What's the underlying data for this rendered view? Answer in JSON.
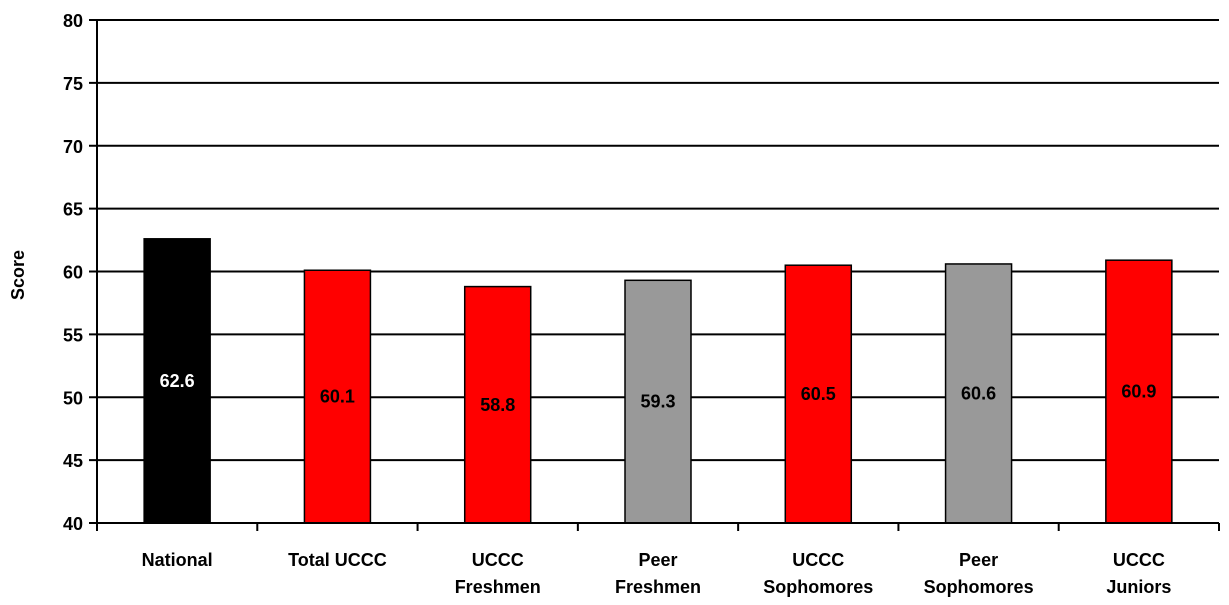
{
  "chart_data": {
    "type": "bar",
    "title": "",
    "xlabel": "",
    "ylabel": "Score",
    "ylim": [
      40,
      80
    ],
    "yticks": [
      "40",
      "45",
      "50",
      "55",
      "60",
      "65",
      "70",
      "75",
      "80"
    ],
    "grid": true,
    "legend": "none",
    "categories": [
      [
        "National"
      ],
      [
        "Total UCCC"
      ],
      [
        "UCCC",
        "Freshmen"
      ],
      [
        "Peer",
        "Freshmen"
      ],
      [
        "UCCC",
        "Sophomores"
      ],
      [
        "Peer",
        "Sophomores"
      ],
      [
        "UCCC",
        "Juniors"
      ]
    ],
    "values": [
      62.6,
      60.1,
      58.8,
      59.3,
      60.5,
      60.6,
      60.9
    ],
    "data_labels": [
      "62.6",
      "60.1",
      "58.8",
      "59.3",
      "60.5",
      "60.6",
      "60.9"
    ],
    "bar_colors": [
      "#000000",
      "#ff0000",
      "#ff0000",
      "#999999",
      "#ff0000",
      "#999999",
      "#ff0000"
    ],
    "label_colors": [
      "#ffffff",
      "#000000",
      "#000000",
      "#000000",
      "#000000",
      "#000000",
      "#000000"
    ]
  }
}
